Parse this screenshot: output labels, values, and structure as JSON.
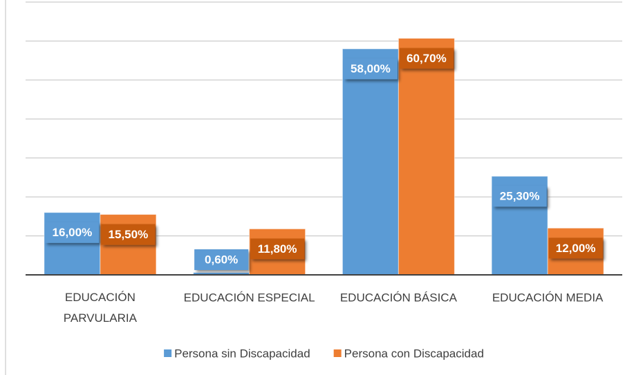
{
  "chart_data": {
    "type": "bar",
    "categories": [
      "EDUCACIÓN PARVULARIA",
      "EDUCACIÓN ESPECIAL",
      "EDUCACIÓN BÁSICA",
      "EDUCACIÓN MEDIA"
    ],
    "series": [
      {
        "name": "Persona sin Discapacidad",
        "color": "#5b9bd5",
        "values": [
          16,
          0.6,
          58,
          25.3
        ],
        "value_labels": [
          "16,00%",
          "0,60%",
          "58,00%",
          "25,30%"
        ]
      },
      {
        "name": "Persona con Discapacidad",
        "color": "#ed7d31",
        "values": [
          15.5,
          11.8,
          60.7,
          12
        ],
        "value_labels": [
          "15,50%",
          "11,80%",
          "60,70%",
          "12,00%"
        ]
      }
    ],
    "ylim": [
      0,
      70
    ],
    "yticks": [
      0,
      10,
      20,
      30,
      40,
      50,
      60,
      70
    ],
    "grid": true,
    "legend": "bottom"
  }
}
